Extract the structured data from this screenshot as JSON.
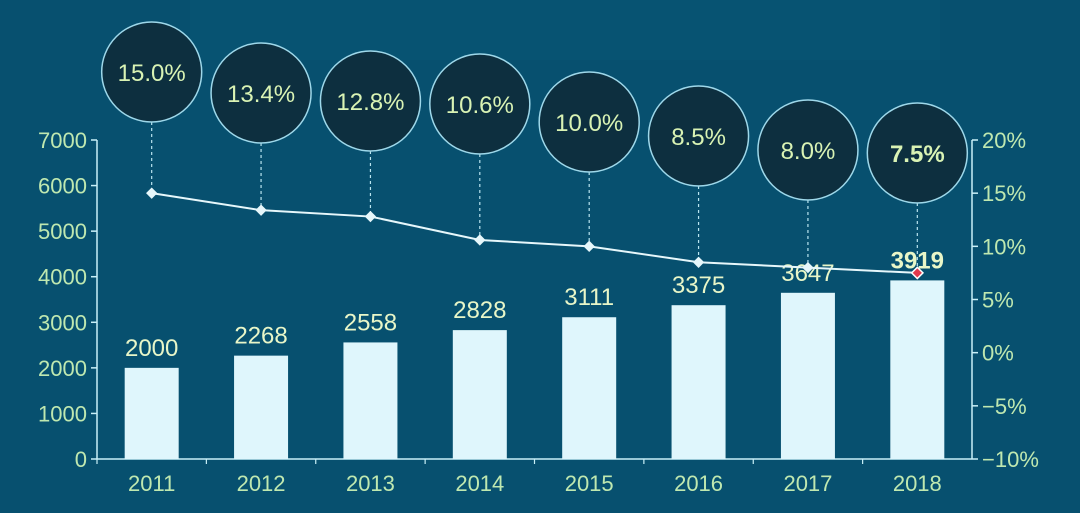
{
  "colors": {
    "background": "#07506f",
    "bar": "#dff6fc",
    "axis": "#c9f0f8",
    "tick_text": "#bfe8b0",
    "bar_label": "#e8f6c8",
    "bubble_fill": "#0d2f3f",
    "bubble_stroke": "#9ed8ea",
    "bubble_text": "#d9f3b4",
    "line": "#e6f7fb",
    "leader": "#b9e4ef",
    "highlight_marker": "#e23a4d"
  },
  "chart_data": {
    "type": "bar",
    "categories": [
      "2011",
      "2012",
      "2013",
      "2014",
      "2015",
      "2016",
      "2017",
      "2018"
    ],
    "series": [
      {
        "axis": "left",
        "type": "bar",
        "values": [
          2000,
          2268,
          2558,
          2828,
          3111,
          3375,
          3647,
          3919
        ]
      },
      {
        "axis": "right",
        "type": "line",
        "values": [
          15.0,
          13.4,
          12.8,
          10.6,
          10.0,
          8.5,
          8.0,
          7.5
        ]
      }
    ],
    "bar_labels": [
      "2000",
      "2268",
      "2558",
      "2828",
      "3111",
      "3375",
      "3647",
      "3919"
    ],
    "rate_labels": [
      "15.0%",
      "13.4%",
      "12.8%",
      "10.6%",
      "10.0%",
      "8.5%",
      "8.0%",
      "7.5%"
    ],
    "y_left": {
      "min": 0,
      "max": 7000,
      "ticks": [
        "0",
        "1000",
        "2000",
        "3000",
        "4000",
        "5000",
        "6000",
        "7000"
      ]
    },
    "y_right": {
      "min": -10,
      "max": 20,
      "ticks": [
        "−10%",
        "−5%",
        "0%",
        "5%",
        "10%",
        "15%",
        "20%"
      ]
    },
    "highlight_index": 7,
    "grid": false,
    "legend": "none"
  }
}
